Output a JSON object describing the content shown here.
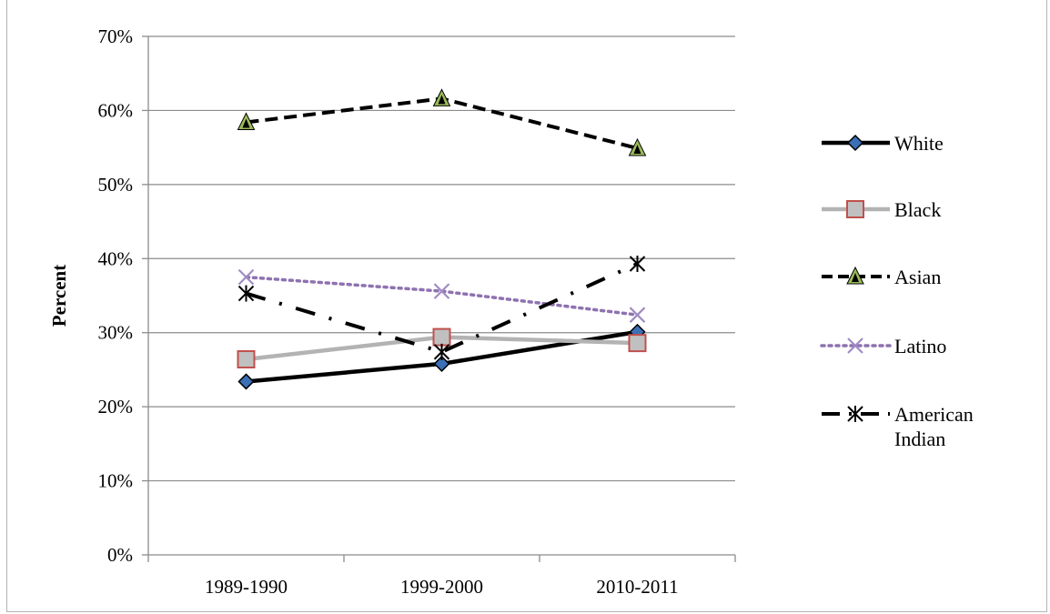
{
  "chart_data": {
    "type": "line",
    "title": "",
    "xlabel": "",
    "ylabel": "Percent",
    "ylim": [
      0,
      70
    ],
    "ytick_step": 10,
    "ytick_labels": [
      "0%",
      "10%",
      "20%",
      "30%",
      "40%",
      "50%",
      "60%",
      "70%"
    ],
    "categories": [
      "1989-1990",
      "1999-2000",
      "2010-2011"
    ],
    "grid": "horizontal",
    "legend_position": "right",
    "series": [
      {
        "name": "White",
        "values": [
          23.4,
          25.8,
          30.1
        ],
        "color": "#000000",
        "marker": "diamond",
        "marker_fill": "#3b6fb6",
        "line_style": "solid"
      },
      {
        "name": "Black",
        "values": [
          26.4,
          29.4,
          28.6
        ],
        "color": "#b3b3b3",
        "marker": "square",
        "marker_fill": "#c0c0c0",
        "marker_stroke": "#c0504d",
        "line_style": "solid"
      },
      {
        "name": "Asian",
        "values": [
          58.4,
          61.6,
          54.9
        ],
        "color": "#000000",
        "marker": "triangle",
        "marker_fill": "#9bbb59",
        "line_style": "dashed"
      },
      {
        "name": "Latino",
        "values": [
          37.5,
          35.6,
          32.4
        ],
        "color": "#8e72b0",
        "marker": "x",
        "marker_fill": "#a08cc4",
        "line_style": "dotted"
      },
      {
        "name": "American Indian",
        "name_lines": [
          "American",
          "Indian"
        ],
        "values": [
          35.3,
          27.4,
          39.3
        ],
        "color": "#000000",
        "marker": "star",
        "marker_fill": "#000000",
        "line_style": "dashdot"
      }
    ]
  }
}
